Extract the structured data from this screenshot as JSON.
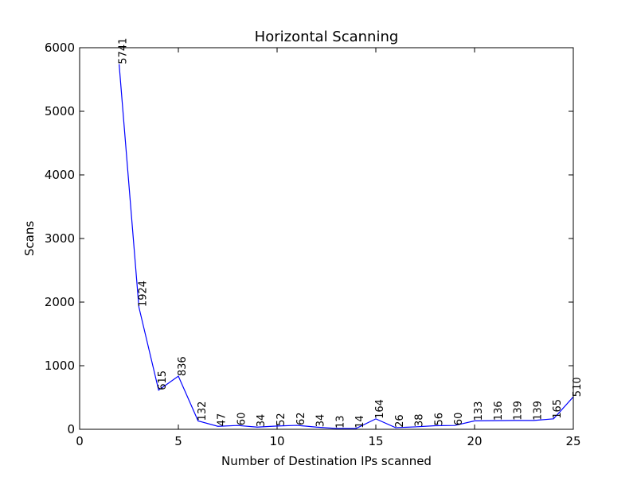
{
  "chart_data": {
    "type": "line",
    "title": "Horizontal Scanning",
    "xlabel": "Number of Destination IPs scanned",
    "ylabel": "Scans",
    "xlim": [
      0,
      25
    ],
    "ylim": [
      0,
      6000
    ],
    "xticks": [
      "0",
      "5",
      "10",
      "15",
      "20",
      "25"
    ],
    "yticks": [
      "0",
      "1000",
      "2000",
      "3000",
      "4000",
      "5000",
      "6000"
    ],
    "grid": false,
    "line_color": "#0000ff",
    "series": [
      {
        "x": [
          2,
          3,
          4,
          5,
          6,
          7,
          8,
          9,
          10,
          11,
          12,
          13,
          14,
          15,
          16,
          17,
          18,
          19,
          20,
          21,
          22,
          23,
          24,
          25
        ],
        "values": [
          5741,
          1924,
          615,
          836,
          132,
          47,
          60,
          34,
          52,
          62,
          34,
          13,
          14,
          164,
          26,
          38,
          56,
          60,
          133,
          136,
          139,
          139,
          165,
          510
        ],
        "labels": [
          "5741",
          "1924",
          "615",
          "836",
          "132",
          "47",
          "60",
          "34",
          "52",
          "62",
          "34",
          "13",
          "14",
          "164",
          "26",
          "38",
          "56",
          "60",
          "133",
          "136",
          "139",
          "139",
          "165",
          "510"
        ]
      }
    ]
  }
}
